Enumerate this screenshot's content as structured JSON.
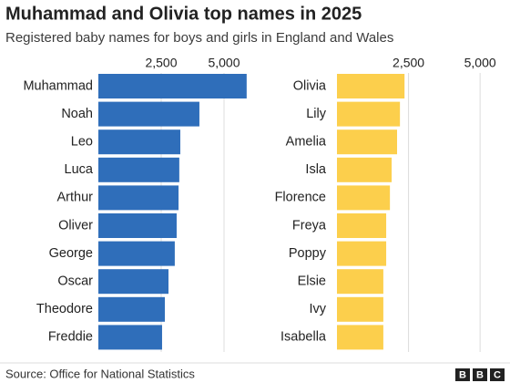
{
  "title": "Muhammad and Olivia top names in 2025",
  "subtitle": "Registered baby names for boys and girls in England and Wales",
  "source": "Source: Office for National Statistics",
  "logo": [
    "B",
    "B",
    "C"
  ],
  "chart_data": [
    {
      "type": "bar",
      "orientation": "horizontal",
      "color": "#2f6eba",
      "grid": true,
      "categories": [
        "Muhammad",
        "Noah",
        "Leo",
        "Luca",
        "Arthur",
        "Oliver",
        "George",
        "Oscar",
        "Theodore",
        "Freddie"
      ],
      "values": [
        5900,
        4020,
        3260,
        3220,
        3190,
        3115,
        3040,
        2790,
        2645,
        2535
      ],
      "xlim": [
        0,
        6000
      ],
      "xticks": [
        {
          "value": 2500,
          "label": "2,500"
        },
        {
          "value": 5000,
          "label": "5,000"
        }
      ]
    },
    {
      "type": "bar",
      "orientation": "horizontal",
      "color": "#fccf4c",
      "grid": true,
      "categories": [
        "Olivia",
        "Lily",
        "Amelia",
        "Isla",
        "Florence",
        "Freya",
        "Poppy",
        "Elsie",
        "Ivy",
        "Isabella"
      ],
      "values": [
        2360,
        2200,
        2100,
        1910,
        1850,
        1720,
        1720,
        1620,
        1620,
        1620
      ],
      "xlim": [
        0,
        5600
      ],
      "xticks": [
        {
          "value": 2500,
          "label": "2,500"
        },
        {
          "value": 5000,
          "label": "5,000"
        }
      ]
    }
  ]
}
